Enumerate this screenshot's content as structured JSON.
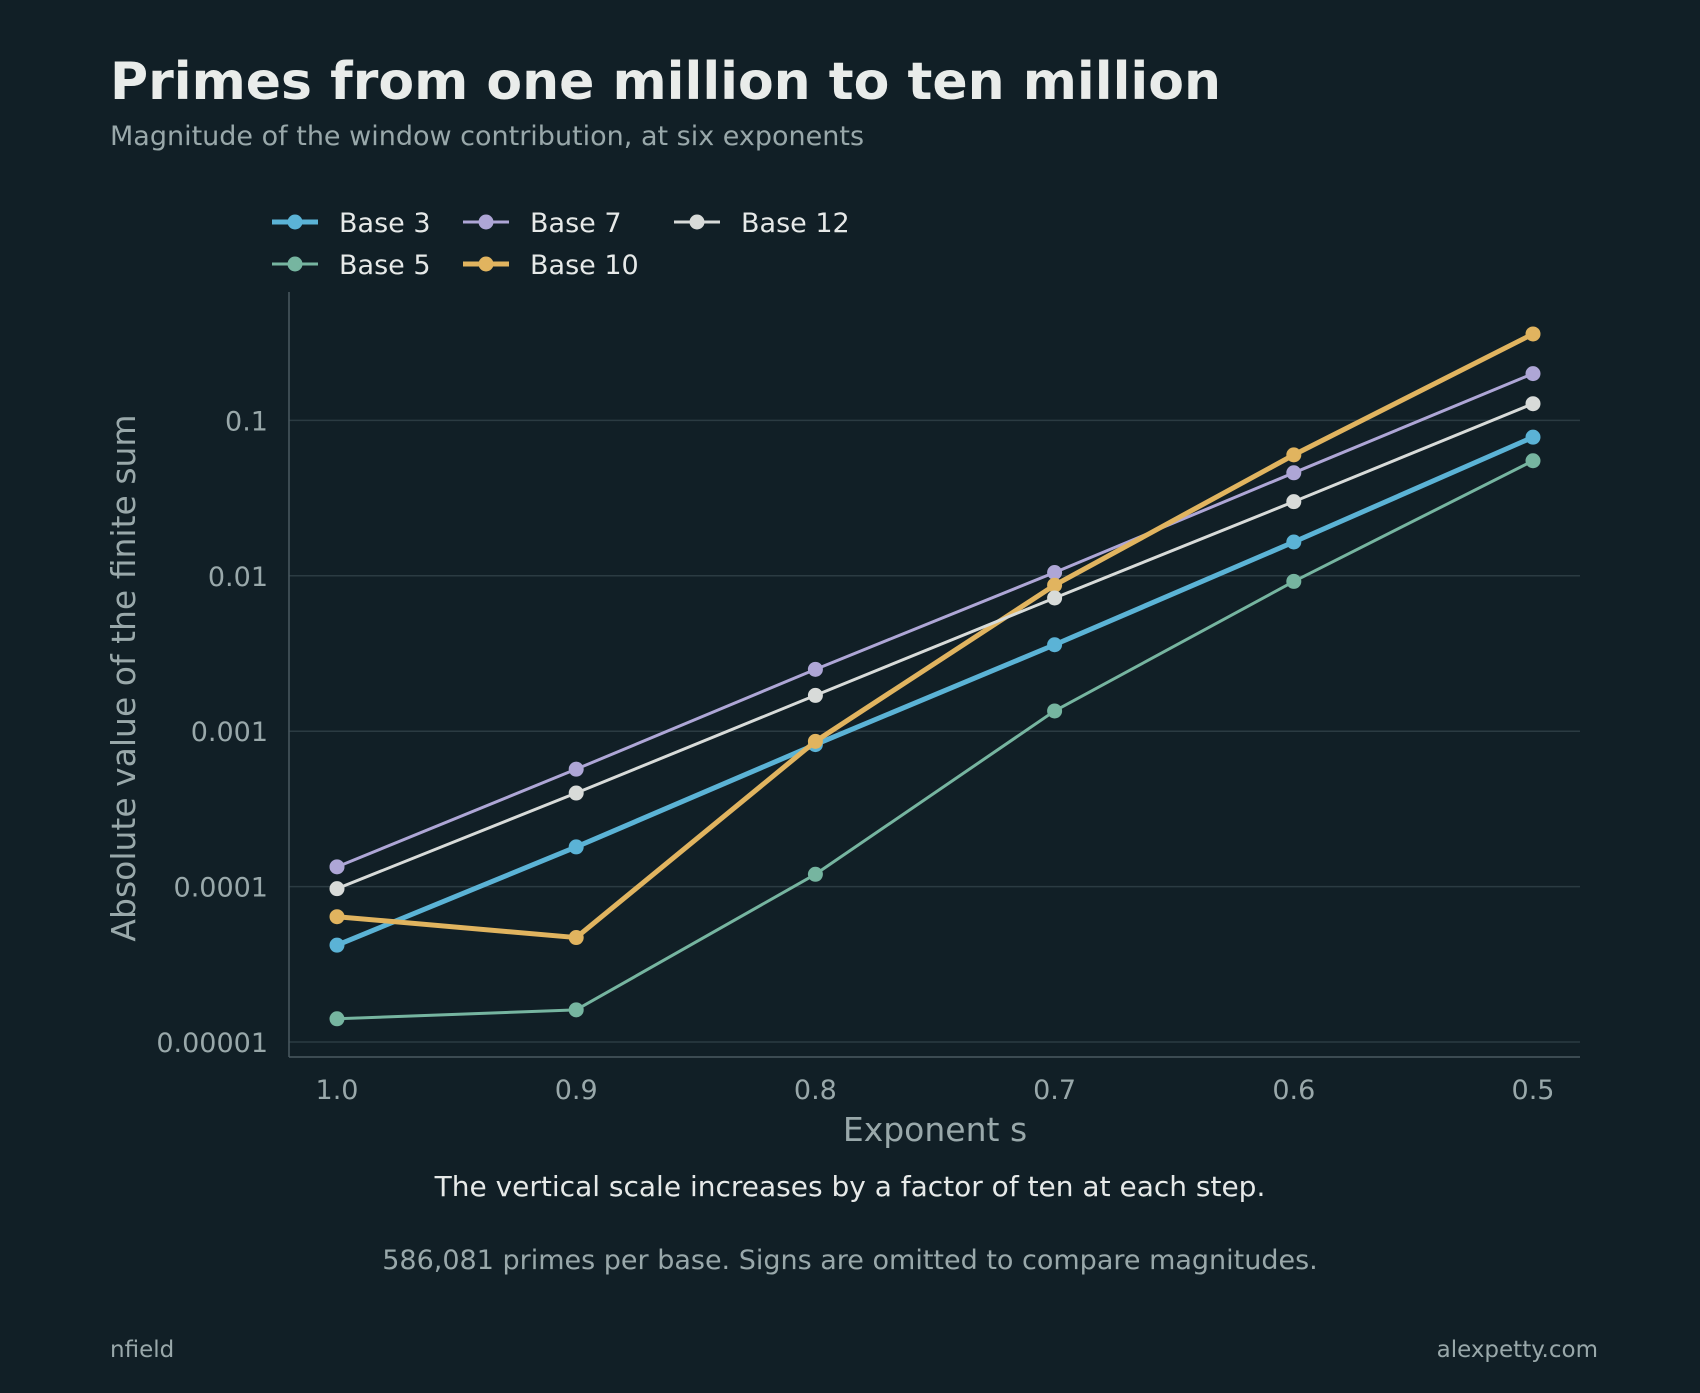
{
  "header": {
    "title": "Primes from one million to ten million",
    "subtitle": "Magnitude of the window contribution, at six exponents"
  },
  "captions": {
    "main": "The vertical scale increases by a factor of ten at each step.",
    "note": "586,081 primes per base. Signs are omitted to compare magnitudes."
  },
  "footer": {
    "left": "nfield",
    "right": "alexpetty.com"
  },
  "chart_data": {
    "type": "line",
    "title": "Primes from one million to ten million",
    "subtitle": "Magnitude of the window contribution, at six exponents",
    "xlabel": "Exponent s",
    "ylabel": "Absolute value of the finite sum",
    "x": [
      1.0,
      0.9,
      0.8,
      0.7,
      0.6,
      0.5
    ],
    "x_tick_labels": [
      "1.0",
      "0.9",
      "0.8",
      "0.7",
      "0.6",
      "0.5"
    ],
    "x_reversed": true,
    "y_scale": "log",
    "ylim": [
      8.5e-06,
      0.65
    ],
    "y_ticks": [
      1e-05,
      0.0001,
      0.001,
      0.01,
      0.1
    ],
    "y_tick_labels": [
      "0.00001",
      "0.0001",
      "0.001",
      "0.01",
      "0.1"
    ],
    "grid": "horizontal",
    "legend": "top-left",
    "series": [
      {
        "name": "Base 3",
        "color": "#5bb3d6",
        "emphasis": true,
        "values": [
          4.2e-05,
          0.00018,
          0.00082,
          0.0036,
          0.0165,
          0.078
        ]
      },
      {
        "name": "Base 5",
        "color": "#76b5a0",
        "emphasis": false,
        "values": [
          1.41e-05,
          1.61e-05,
          0.00012,
          0.00135,
          0.0092,
          0.055
        ]
      },
      {
        "name": "Base 7",
        "color": "#aea6d6",
        "emphasis": false,
        "values": [
          0.000134,
          0.00057,
          0.0025,
          0.0105,
          0.046,
          0.2
        ]
      },
      {
        "name": "Base 10",
        "color": "#e1b45f",
        "emphasis": true,
        "values": [
          6.4e-05,
          4.7e-05,
          0.00086,
          0.0087,
          0.06,
          0.36
        ]
      },
      {
        "name": "Base 12",
        "color": "#d8dbd9",
        "emphasis": false,
        "values": [
          9.7e-05,
          0.0004,
          0.0017,
          0.0072,
          0.03,
          0.128
        ]
      }
    ]
  }
}
